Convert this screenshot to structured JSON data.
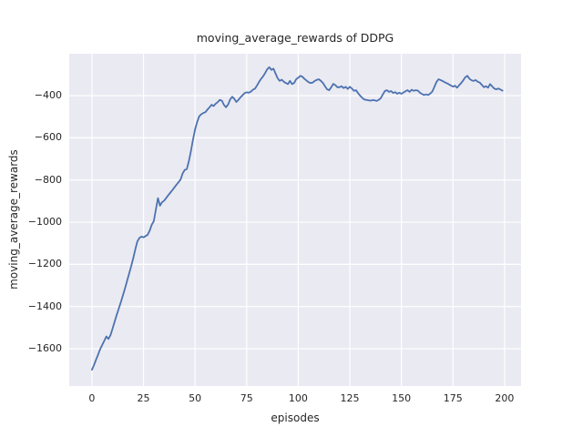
{
  "chart": {
    "title": "moving_average_rewards of DDPG",
    "xlabel": "episodes",
    "ylabel": "moving_average_rewards"
  },
  "style": {
    "figure_bg": "#FFFFFF",
    "plot_bg": "#EAEAF2",
    "grid_color": "#FFFFFF",
    "line_color": "#4C72B0",
    "text_color": "#262626"
  },
  "chart_data": {
    "type": "line",
    "title": "moving_average_rewards of DDPG",
    "xlabel": "episodes",
    "ylabel": "moving_average_rewards",
    "grid": true,
    "legend": null,
    "x_tick_values": [
      0,
      25,
      50,
      75,
      100,
      125,
      150,
      175,
      200
    ],
    "x_tick_labels": [
      "0",
      "25",
      "50",
      "75",
      "100",
      "125",
      "150",
      "175",
      "200"
    ],
    "y_tick_values": [
      -400,
      -600,
      -800,
      -1000,
      -1200,
      -1400,
      -1600
    ],
    "y_tick_labels": [
      "−400",
      "−600",
      "−800",
      "−1000",
      "−1200",
      "−1400",
      "−1600"
    ],
    "xlim": [
      -11,
      208
    ],
    "ylim": [
      -1777,
      -201
    ],
    "x_description": "episode index 0-199, step 1",
    "series": [
      {
        "name": "moving_average_rewards",
        "color": "#4C72B0",
        "x_start": 0,
        "x_step": 1,
        "values": [
          -1700,
          -1678,
          -1652,
          -1628,
          -1602,
          -1582,
          -1562,
          -1542,
          -1554,
          -1536,
          -1505,
          -1472,
          -1440,
          -1410,
          -1380,
          -1348,
          -1315,
          -1280,
          -1245,
          -1210,
          -1172,
          -1130,
          -1092,
          -1075,
          -1068,
          -1072,
          -1066,
          -1060,
          -1040,
          -1012,
          -995,
          -940,
          -886,
          -922,
          -905,
          -898,
          -885,
          -872,
          -860,
          -848,
          -835,
          -822,
          -810,
          -797,
          -768,
          -752,
          -748,
          -710,
          -662,
          -608,
          -560,
          -525,
          -498,
          -488,
          -482,
          -478,
          -466,
          -455,
          -443,
          -449,
          -438,
          -430,
          -420,
          -424,
          -444,
          -455,
          -442,
          -418,
          -405,
          -415,
          -430,
          -420,
          -408,
          -398,
          -388,
          -384,
          -386,
          -381,
          -372,
          -367,
          -352,
          -335,
          -320,
          -308,
          -292,
          -274,
          -265,
          -278,
          -272,
          -295,
          -317,
          -330,
          -324,
          -334,
          -340,
          -345,
          -330,
          -345,
          -340,
          -322,
          -315,
          -306,
          -310,
          -320,
          -328,
          -336,
          -340,
          -338,
          -330,
          -325,
          -322,
          -330,
          -340,
          -356,
          -370,
          -374,
          -360,
          -344,
          -350,
          -360,
          -360,
          -355,
          -364,
          -358,
          -368,
          -358,
          -366,
          -377,
          -374,
          -388,
          -400,
          -410,
          -418,
          -420,
          -422,
          -424,
          -421,
          -422,
          -425,
          -420,
          -412,
          -394,
          -378,
          -374,
          -382,
          -378,
          -387,
          -383,
          -391,
          -386,
          -391,
          -385,
          -379,
          -374,
          -382,
          -372,
          -377,
          -374,
          -376,
          -386,
          -392,
          -397,
          -394,
          -397,
          -390,
          -380,
          -358,
          -335,
          -322,
          -326,
          -331,
          -336,
          -341,
          -346,
          -352,
          -357,
          -353,
          -362,
          -350,
          -340,
          -327,
          -312,
          -306,
          -320,
          -327,
          -330,
          -326,
          -334,
          -338,
          -349,
          -360,
          -355,
          -362,
          -345,
          -356,
          -366,
          -370,
          -366,
          -371,
          -376
        ]
      }
    ]
  }
}
